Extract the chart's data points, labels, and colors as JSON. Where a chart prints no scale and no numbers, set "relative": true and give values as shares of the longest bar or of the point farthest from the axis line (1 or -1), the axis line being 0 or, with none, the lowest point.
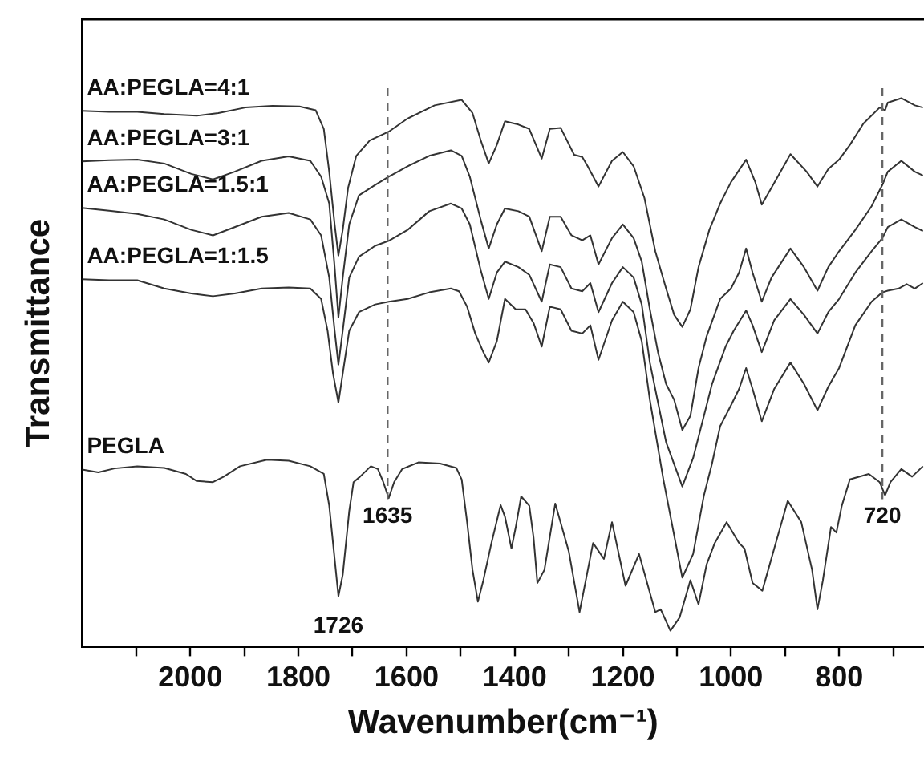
{
  "chart_data": {
    "type": "line",
    "relative": true,
    "xlabel": "Wavenumber(cm⁻¹)",
    "ylabel": "Transmittance",
    "marker": "none",
    "line_style": "solid",
    "xlim": [
      2200,
      643
    ],
    "xticks": [
      {
        "value": 2100,
        "label": null
      },
      2000,
      {
        "value": 1900,
        "label": null
      },
      1800,
      {
        "value": 1700,
        "label": null
      },
      1600,
      {
        "value": 1500,
        "label": null
      },
      1400,
      {
        "value": 1300,
        "label": null
      },
      1200,
      {
        "value": 1100,
        "label": null
      },
      1000,
      {
        "value": 900,
        "label": null
      },
      800,
      {
        "value": 700,
        "label": null
      }
    ],
    "series": [
      {
        "name": "AA:PEGLA=4:1",
        "color": "#333333",
        "x": [
          2200,
          2150,
          2098,
          2048,
          1988,
          1948,
          1898,
          1848,
          1798,
          1768,
          1753,
          1743,
          1733,
          1726,
          1718,
          1708,
          1693,
          1668,
          1633,
          1598,
          1548,
          1498,
          1478,
          1463,
          1448,
          1433,
          1418,
          1393,
          1373,
          1350,
          1335,
          1315,
          1290,
          1275,
          1265,
          1245,
          1220,
          1200,
          1180,
          1160,
          1140,
          1120,
          1105,
          1090,
          1075,
          1060,
          1040,
          1020,
          1000,
          972,
          955,
          943,
          925,
          890,
          860,
          840,
          820,
          800,
          780,
          755,
          725,
          715,
          710,
          685,
          660,
          645
        ],
        "values": [
          0.977,
          0.975,
          0.975,
          0.971,
          0.968,
          0.973,
          0.983,
          0.986,
          0.985,
          0.978,
          0.944,
          0.866,
          0.77,
          0.713,
          0.76,
          0.837,
          0.895,
          0.923,
          0.939,
          0.963,
          0.987,
          0.997,
          0.973,
          0.924,
          0.881,
          0.915,
          0.958,
          0.952,
          0.944,
          0.89,
          0.944,
          0.946,
          0.897,
          0.893,
          0.876,
          0.839,
          0.886,
          0.902,
          0.876,
          0.818,
          0.721,
          0.653,
          0.605,
          0.583,
          0.615,
          0.692,
          0.76,
          0.808,
          0.847,
          0.888,
          0.847,
          0.806,
          0.837,
          0.898,
          0.866,
          0.839,
          0.871,
          0.888,
          0.915,
          0.954,
          0.983,
          0.978,
          0.992,
          1,
          0.987,
          0.983
        ]
      },
      {
        "name": "AA:PEGLA=3:1",
        "color": "#333333",
        "x": [
          2200,
          2150,
          2098,
          2048,
          1998,
          1958,
          1918,
          1868,
          1818,
          1778,
          1758,
          1743,
          1733,
          1726,
          1718,
          1706,
          1688,
          1658,
          1633,
          1598,
          1558,
          1518,
          1498,
          1483,
          1463,
          1448,
          1433,
          1418,
          1393,
          1373,
          1350,
          1335,
          1315,
          1295,
          1275,
          1260,
          1245,
          1220,
          1200,
          1180,
          1165,
          1150,
          1135,
          1120,
          1105,
          1090,
          1075,
          1060,
          1045,
          1020,
          1000,
          985,
          972,
          960,
          943,
          925,
          890,
          865,
          840,
          820,
          800,
          770,
          740,
          720,
          710,
          685,
          660,
          645
        ],
        "values": [
          0.885,
          0.887,
          0.888,
          0.881,
          0.862,
          0.852,
          0.866,
          0.886,
          0.894,
          0.886,
          0.857,
          0.808,
          0.692,
          0.6,
          0.673,
          0.77,
          0.823,
          0.842,
          0.857,
          0.876,
          0.895,
          0.905,
          0.895,
          0.857,
          0.779,
          0.726,
          0.77,
          0.799,
          0.794,
          0.784,
          0.721,
          0.784,
          0.784,
          0.75,
          0.741,
          0.75,
          0.697,
          0.745,
          0.77,
          0.745,
          0.702,
          0.615,
          0.537,
          0.479,
          0.45,
          0.395,
          0.421,
          0.508,
          0.566,
          0.634,
          0.653,
          0.682,
          0.726,
          0.682,
          0.629,
          0.673,
          0.726,
          0.692,
          0.649,
          0.692,
          0.721,
          0.76,
          0.803,
          0.842,
          0.866,
          0.886,
          0.866,
          0.859
        ]
      },
      {
        "name": "AA:PEGLA=1.5:1",
        "color": "#333333",
        "x": [
          2200,
          2150,
          2098,
          2048,
          1998,
          1958,
          1918,
          1868,
          1818,
          1778,
          1758,
          1743,
          1733,
          1726,
          1718,
          1706,
          1688,
          1658,
          1633,
          1598,
          1558,
          1518,
          1498,
          1483,
          1463,
          1448,
          1433,
          1418,
          1393,
          1373,
          1350,
          1335,
          1315,
          1295,
          1275,
          1260,
          1245,
          1220,
          1200,
          1180,
          1165,
          1150,
          1120,
          1090,
          1070,
          1050,
          1035,
          1010,
          995,
          972,
          960,
          943,
          920,
          890,
          865,
          840,
          820,
          800,
          770,
          740,
          720,
          710,
          685,
          660,
          645
        ],
        "values": [
          0.8,
          0.795,
          0.789,
          0.779,
          0.76,
          0.75,
          0.765,
          0.784,
          0.791,
          0.779,
          0.75,
          0.673,
          0.576,
          0.514,
          0.576,
          0.673,
          0.711,
          0.731,
          0.74,
          0.76,
          0.794,
          0.808,
          0.799,
          0.77,
          0.687,
          0.634,
          0.682,
          0.702,
          0.692,
          0.678,
          0.629,
          0.697,
          0.692,
          0.653,
          0.648,
          0.663,
          0.61,
          0.663,
          0.692,
          0.673,
          0.624,
          0.518,
          0.373,
          0.292,
          0.344,
          0.421,
          0.479,
          0.547,
          0.576,
          0.613,
          0.586,
          0.537,
          0.595,
          0.634,
          0.605,
          0.571,
          0.61,
          0.634,
          0.682,
          0.721,
          0.745,
          0.765,
          0.779,
          0.765,
          0.758
        ]
      },
      {
        "name": "AA:PEGLA=1:1.5",
        "color": "#333333",
        "x": [
          2200,
          2150,
          2098,
          2048,
          1998,
          1958,
          1918,
          1868,
          1818,
          1778,
          1758,
          1746,
          1736,
          1726,
          1718,
          1706,
          1688,
          1658,
          1633,
          1598,
          1558,
          1518,
          1503,
          1488,
          1473,
          1458,
          1448,
          1433,
          1418,
          1398,
          1380,
          1365,
          1350,
          1335,
          1315,
          1295,
          1275,
          1260,
          1245,
          1220,
          1200,
          1180,
          1165,
          1150,
          1125,
          1090,
          1070,
          1050,
          1035,
          1020,
          1000,
          985,
          972,
          960,
          943,
          920,
          890,
          865,
          840,
          820,
          800,
          770,
          740,
          720,
          710,
          690,
          675,
          660,
          645
        ],
        "values": [
          0.67,
          0.668,
          0.668,
          0.653,
          0.644,
          0.639,
          0.644,
          0.653,
          0.655,
          0.653,
          0.634,
          0.576,
          0.498,
          0.445,
          0.498,
          0.576,
          0.61,
          0.624,
          0.629,
          0.634,
          0.646,
          0.653,
          0.648,
          0.62,
          0.571,
          0.537,
          0.518,
          0.557,
          0.634,
          0.615,
          0.615,
          0.59,
          0.547,
          0.62,
          0.615,
          0.576,
          0.571,
          0.586,
          0.523,
          0.595,
          0.629,
          0.61,
          0.557,
          0.45,
          0.305,
          0.126,
          0.169,
          0.276,
          0.334,
          0.402,
          0.44,
          0.47,
          0.508,
          0.47,
          0.411,
          0.47,
          0.518,
          0.479,
          0.431,
          0.474,
          0.508,
          0.586,
          0.629,
          0.646,
          0.649,
          0.653,
          0.661,
          0.653,
          0.663
        ]
      },
      {
        "name": "PEGLA",
        "color": "#333333",
        "x": [
          2200,
          2170,
          2140,
          2098,
          2048,
          2008,
          1988,
          1958,
          1938,
          1908,
          1858,
          1818,
          1778,
          1753,
          1743,
          1733,
          1726,
          1718,
          1706,
          1698,
          1686,
          1666,
          1653,
          1643,
          1633,
          1623,
          1608,
          1578,
          1538,
          1508,
          1498,
          1488,
          1478,
          1468,
          1458,
          1443,
          1426,
          1418,
          1406,
          1398,
          1388,
          1373,
          1365,
          1358,
          1345,
          1325,
          1300,
          1280,
          1255,
          1235,
          1220,
          1195,
          1170,
          1140,
          1130,
          1112,
          1095,
          1075,
          1060,
          1045,
          1030,
          1008,
          985,
          975,
          960,
          942,
          920,
          895,
          870,
          850,
          840,
          830,
          815,
          805,
          795,
          780,
          745,
          725,
          715,
          705,
          685,
          665,
          645
        ],
        "values": [
          0.323,
          0.318,
          0.325,
          0.329,
          0.326,
          0.315,
          0.302,
          0.3,
          0.31,
          0.329,
          0.341,
          0.339,
          0.329,
          0.315,
          0.257,
          0.16,
          0.092,
          0.131,
          0.247,
          0.3,
          0.31,
          0.329,
          0.324,
          0.3,
          0.271,
          0.3,
          0.324,
          0.336,
          0.334,
          0.326,
          0.305,
          0.227,
          0.14,
          0.082,
          0.121,
          0.189,
          0.258,
          0.237,
          0.179,
          0.218,
          0.274,
          0.257,
          0.198,
          0.116,
          0.14,
          0.261,
          0.174,
          0.063,
          0.189,
          0.16,
          0.227,
          0.111,
          0.169,
          0.063,
          0.068,
          0.029,
          0.053,
          0.121,
          0.077,
          0.15,
          0.189,
          0.227,
          0.189,
          0.179,
          0.116,
          0.102,
          0.179,
          0.266,
          0.227,
          0.14,
          0.068,
          0.121,
          0.218,
          0.208,
          0.257,
          0.305,
          0.315,
          0.3,
          0.276,
          0.3,
          0.324,
          0.31,
          0.329
        ]
      }
    ],
    "ref_lines": [
      {
        "axis": "x",
        "value": 1635,
        "label": "1635",
        "color": "#666666",
        "line_style": "dashed"
      },
      {
        "axis": "x",
        "value": 720,
        "label": "720",
        "color": "#666666",
        "line_style": "dashed"
      }
    ],
    "annotations": [
      {
        "text": "1726",
        "x": 1726,
        "y": 0.092
      }
    ]
  }
}
